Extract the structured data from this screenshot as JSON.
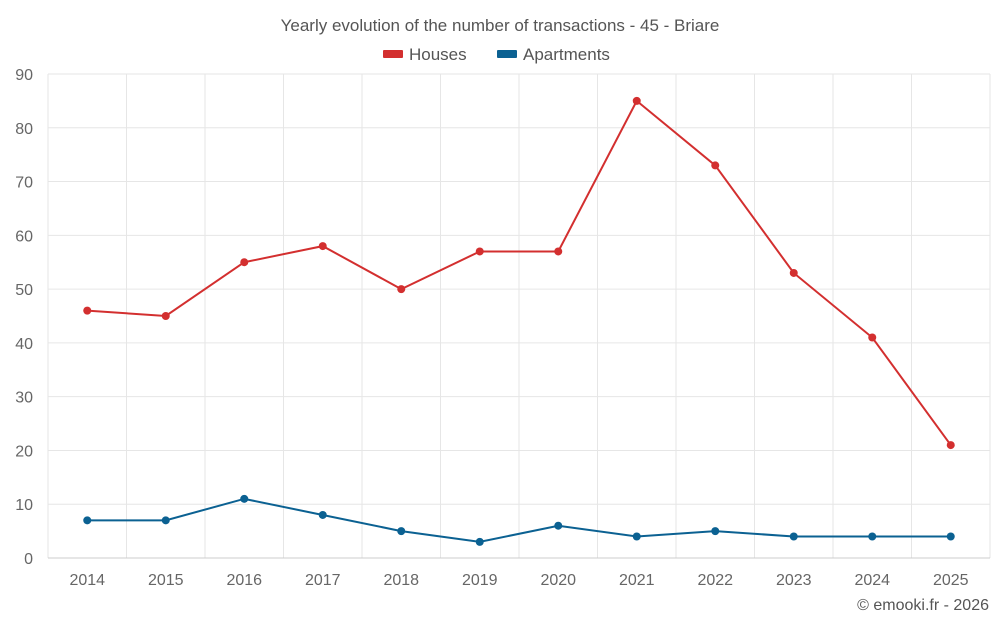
{
  "chart_data": {
    "type": "line",
    "title": "Yearly evolution of the number of transactions - 45 - Briare",
    "categories": [
      "2014",
      "2015",
      "2016",
      "2017",
      "2018",
      "2019",
      "2020",
      "2021",
      "2022",
      "2023",
      "2024",
      "2025"
    ],
    "series": [
      {
        "name": "Houses",
        "color": "#d32f2f",
        "values": [
          46,
          45,
          55,
          58,
          50,
          57,
          57,
          85,
          73,
          53,
          41,
          21
        ]
      },
      {
        "name": "Apartments",
        "color": "#0b6192",
        "values": [
          7,
          7,
          11,
          8,
          5,
          3,
          6,
          4,
          5,
          4,
          4,
          4
        ]
      }
    ],
    "ylim": [
      0,
      90
    ],
    "yticks": [
      0,
      10,
      20,
      30,
      40,
      50,
      60,
      70,
      80,
      90
    ],
    "grid": true,
    "legend_position": "top-center",
    "xlabel": "",
    "ylabel": ""
  },
  "credit": "© emooki.fr - 2026"
}
